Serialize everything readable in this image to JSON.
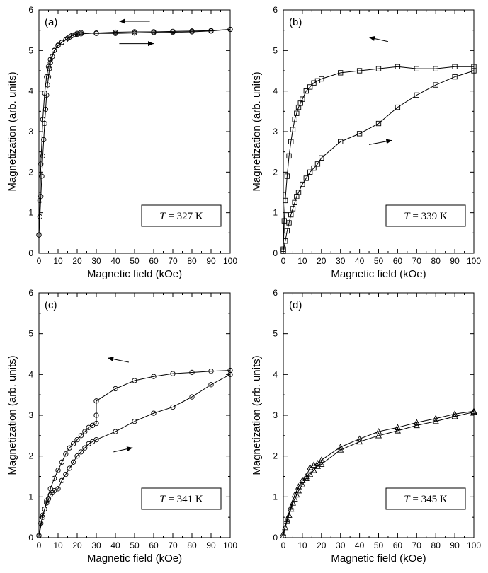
{
  "chart_data": [
    {
      "type": "line",
      "panel": "(a)",
      "temperature_label": "= 327 K",
      "temperature_symbol": "T",
      "xlabel": "Magnetic field (kOe)",
      "ylabel": "Magnetization (arb. units)",
      "xlim": [
        0,
        100
      ],
      "ylim": [
        0,
        6
      ],
      "xticks": [
        "0",
        "10",
        "20",
        "30",
        "40",
        "50",
        "60",
        "70",
        "80",
        "90",
        "100"
      ],
      "yticks": [
        "0",
        "1",
        "2",
        "3",
        "4",
        "5",
        "6"
      ],
      "marker": "circle",
      "arrows": [
        {
          "direction": "left",
          "x_from": 58,
          "x_to": 42,
          "y": 5.72
        },
        {
          "direction": "right",
          "x_from": 42,
          "x_to": 60,
          "y": 5.17
        }
      ],
      "series": [
        {
          "x": [
            0,
            0.5,
            1,
            1.5,
            2,
            2.5,
            3,
            3.5,
            4,
            4.5,
            5,
            5.5,
            6,
            7,
            8,
            10,
            12,
            15,
            17,
            19,
            20,
            22,
            30,
            40,
            50,
            60,
            70,
            80,
            90,
            100
          ],
          "y": [
            0.45,
            0.9,
            1.4,
            1.9,
            2.4,
            2.8,
            3.2,
            3.55,
            3.9,
            4.15,
            4.35,
            4.55,
            4.7,
            4.85,
            5.0,
            5.12,
            5.2,
            5.3,
            5.36,
            5.39,
            5.4,
            5.41,
            5.43,
            5.45,
            5.46,
            5.46,
            5.47,
            5.48,
            5.49,
            5.52
          ]
        },
        {
          "x": [
            100,
            90,
            80,
            70,
            60,
            50,
            40,
            30,
            22,
            20,
            18,
            16,
            14,
            12,
            10,
            8,
            6,
            5,
            4,
            3,
            2,
            1,
            0.5,
            0
          ],
          "y": [
            5.52,
            5.48,
            5.46,
            5.45,
            5.44,
            5.43,
            5.42,
            5.42,
            5.44,
            5.42,
            5.38,
            5.33,
            5.26,
            5.2,
            5.13,
            5.0,
            4.78,
            4.6,
            4.35,
            3.95,
            3.3,
            2.2,
            1.3,
            0.45
          ]
        }
      ]
    },
    {
      "type": "line",
      "panel": "(b)",
      "temperature_label": "= 339 K",
      "temperature_symbol": "T",
      "xlabel": "Magnetic field (kOe)",
      "ylabel": "Magnetization (arb. units)",
      "xlim": [
        0,
        100
      ],
      "ylim": [
        0,
        6
      ],
      "xticks": [
        "0",
        "10",
        "20",
        "30",
        "40",
        "50",
        "60",
        "70",
        "80",
        "90",
        "100"
      ],
      "yticks": [
        "0",
        "1",
        "2",
        "3",
        "4",
        "5",
        "6"
      ],
      "marker": "square",
      "arrows": [
        {
          "direction": "left",
          "x_from": 55,
          "x_to": 45,
          "y": 5.22
        },
        {
          "direction": "right",
          "x_from": 45,
          "x_to": 57,
          "y": 2.68
        }
      ],
      "series": [
        {
          "x": [
            0,
            1,
            2,
            3,
            4,
            5,
            6,
            7,
            8,
            10,
            12,
            14,
            16,
            18,
            20,
            30,
            40,
            50,
            60,
            70,
            80,
            90,
            100
          ],
          "y": [
            0.05,
            0.3,
            0.55,
            0.75,
            0.95,
            1.1,
            1.25,
            1.4,
            1.5,
            1.7,
            1.85,
            2.0,
            2.1,
            2.2,
            2.35,
            2.75,
            2.95,
            3.2,
            3.6,
            3.9,
            4.15,
            4.35,
            4.5
          ]
        },
        {
          "x": [
            100,
            90,
            80,
            70,
            60,
            50,
            40,
            30,
            20,
            18,
            16,
            14,
            12,
            10,
            9,
            8,
            7,
            6,
            5,
            4,
            3,
            2,
            1,
            0.5,
            0
          ],
          "y": [
            4.6,
            4.6,
            4.55,
            4.55,
            4.6,
            4.55,
            4.5,
            4.45,
            4.3,
            4.25,
            4.2,
            4.1,
            4.0,
            3.8,
            3.7,
            3.6,
            3.45,
            3.3,
            3.05,
            2.75,
            2.4,
            1.9,
            1.3,
            0.8,
            0.1
          ]
        }
      ]
    },
    {
      "type": "line",
      "panel": "(c)",
      "temperature_label": "= 341 K",
      "temperature_symbol": "T",
      "xlabel": "Magnetic field (kOe)",
      "ylabel": "Magnetization (arb. units)",
      "xlim": [
        0,
        100
      ],
      "ylim": [
        0,
        6
      ],
      "xticks": [
        "0",
        "10",
        "20",
        "30",
        "40",
        "50",
        "60",
        "70",
        "80",
        "90",
        "100"
      ],
      "yticks": [
        "0",
        "1",
        "2",
        "3",
        "4",
        "5",
        "6"
      ],
      "marker": "circle",
      "arrows": [
        {
          "direction": "left",
          "x_from": 47,
          "x_to": 36,
          "y": 4.3
        },
        {
          "direction": "right",
          "x_from": 39,
          "x_to": 49,
          "y": 2.1
        }
      ],
      "series": [
        {
          "x": [
            0,
            1,
            2,
            3,
            4,
            5,
            6,
            7,
            8,
            10,
            12,
            14,
            16,
            18,
            20,
            22,
            24,
            26,
            28,
            30,
            40,
            50,
            60,
            70,
            80,
            90,
            100
          ],
          "y": [
            0.05,
            0.35,
            0.55,
            0.7,
            0.85,
            0.95,
            1.05,
            1.1,
            1.15,
            1.2,
            1.4,
            1.55,
            1.7,
            1.85,
            2.0,
            2.1,
            2.2,
            2.3,
            2.35,
            2.4,
            2.6,
            2.85,
            3.05,
            3.2,
            3.45,
            3.75,
            4.0
          ]
        },
        {
          "x": [
            100,
            90,
            80,
            70,
            60,
            50,
            40,
            30,
            30,
            30,
            28,
            26,
            24,
            22,
            20,
            18,
            16,
            14,
            12,
            10,
            8,
            6,
            4,
            2,
            0
          ],
          "y": [
            4.1,
            4.08,
            4.05,
            4.02,
            3.95,
            3.85,
            3.65,
            3.35,
            3.0,
            2.8,
            2.75,
            2.7,
            2.6,
            2.5,
            2.4,
            2.3,
            2.2,
            2.05,
            1.85,
            1.65,
            1.45,
            1.2,
            0.9,
            0.5,
            0.05
          ]
        }
      ]
    },
    {
      "type": "line",
      "panel": "(d)",
      "temperature_label": "= 345 K",
      "temperature_symbol": "T",
      "xlabel": "Magnetic field (kOe)",
      "ylabel": "Magnetization (arb. units)",
      "xlim": [
        0,
        100
      ],
      "ylim": [
        0,
        6
      ],
      "xticks": [
        "0",
        "10",
        "20",
        "30",
        "40",
        "50",
        "60",
        "70",
        "80",
        "90",
        "100"
      ],
      "yticks": [
        "0",
        "1",
        "2",
        "3",
        "4",
        "5",
        "6"
      ],
      "marker": "triangle",
      "arrows": [],
      "series": [
        {
          "x": [
            0,
            1,
            2,
            3,
            4,
            5,
            6,
            7,
            8,
            10,
            12,
            14,
            16,
            18,
            20,
            30,
            40,
            50,
            60,
            70,
            80,
            90,
            100
          ],
          "y": [
            0.05,
            0.25,
            0.4,
            0.55,
            0.7,
            0.85,
            0.95,
            1.05,
            1.15,
            1.3,
            1.45,
            1.55,
            1.65,
            1.75,
            1.8,
            2.15,
            2.35,
            2.5,
            2.62,
            2.75,
            2.85,
            2.97,
            3.08
          ]
        },
        {
          "x": [
            100,
            90,
            80,
            70,
            60,
            50,
            40,
            30,
            20,
            18,
            16,
            14,
            12,
            10,
            8,
            6,
            4,
            2,
            0
          ],
          "y": [
            3.1,
            3.03,
            2.92,
            2.82,
            2.7,
            2.6,
            2.42,
            2.22,
            1.9,
            1.82,
            1.78,
            1.72,
            1.5,
            1.4,
            1.25,
            1.05,
            0.75,
            0.45,
            0.1
          ]
        }
      ]
    }
  ]
}
